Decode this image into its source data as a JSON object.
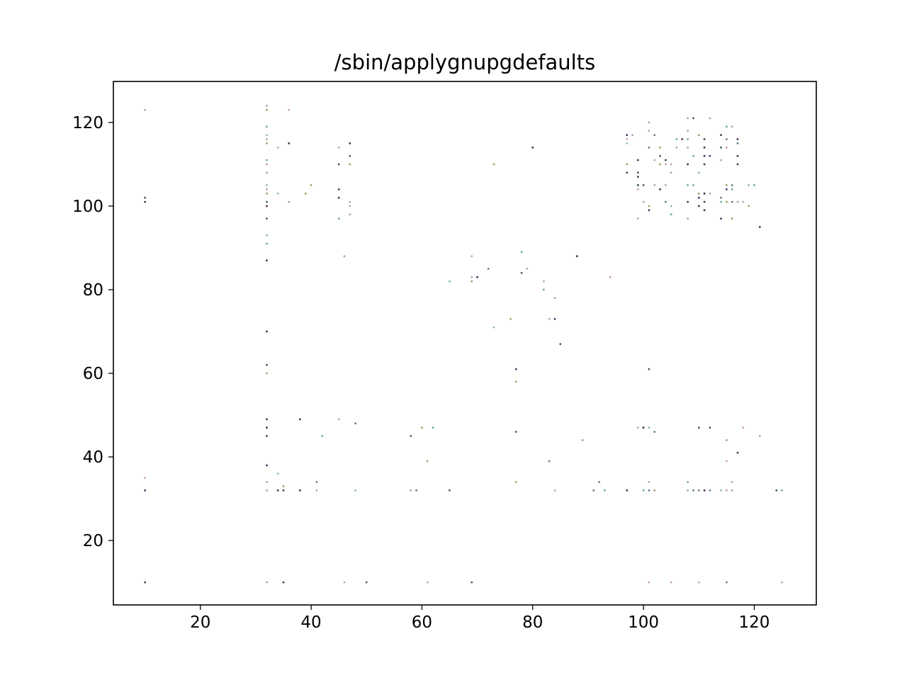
{
  "chart_data": {
    "type": "scatter",
    "title": "/sbin/applygnupgdefaults",
    "xlabel": "",
    "ylabel": "",
    "xlim": [
      4.3,
      131.2
    ],
    "ylim": [
      4.6,
      129.8
    ],
    "xticks": [
      20,
      40,
      60,
      80,
      100,
      120
    ],
    "yticks": [
      20,
      40,
      60,
      80,
      100,
      120
    ],
    "grid": false,
    "legend": "none",
    "point_colors": [
      "#2f3a5c",
      "#5e7a8a",
      "#8fb9a8",
      "#b79ab7",
      "#9e9e6e",
      "#4b2a4a",
      "#c9a0b0",
      "#6aa79a",
      "#a9a9a9",
      "#3d5f4f"
    ],
    "points": [
      [
        10,
        123
      ],
      [
        10,
        102
      ],
      [
        10,
        101
      ],
      [
        10,
        35
      ],
      [
        10,
        32
      ],
      [
        10,
        10
      ],
      [
        32,
        124
      ],
      [
        32,
        123
      ],
      [
        32,
        119
      ],
      [
        32,
        117
      ],
      [
        32,
        116
      ],
      [
        32,
        115
      ],
      [
        32,
        111
      ],
      [
        32,
        110
      ],
      [
        32,
        108
      ],
      [
        32,
        105
      ],
      [
        32,
        104
      ],
      [
        32,
        103
      ],
      [
        32,
        101
      ],
      [
        32,
        100
      ],
      [
        32,
        97
      ],
      [
        32,
        93
      ],
      [
        32,
        91
      ],
      [
        32,
        87
      ],
      [
        32,
        70
      ],
      [
        32,
        62
      ],
      [
        32,
        60
      ],
      [
        32,
        49
      ],
      [
        32,
        47
      ],
      [
        32,
        45
      ],
      [
        32,
        38
      ],
      [
        32,
        34
      ],
      [
        32,
        32
      ],
      [
        32,
        10
      ],
      [
        34,
        114
      ],
      [
        34,
        103
      ],
      [
        34,
        36
      ],
      [
        34,
        32
      ],
      [
        35,
        33
      ],
      [
        35,
        32
      ],
      [
        35,
        10
      ],
      [
        36,
        123
      ],
      [
        36,
        115
      ],
      [
        36,
        101
      ],
      [
        38,
        49
      ],
      [
        38,
        32
      ],
      [
        39,
        103
      ],
      [
        40,
        105
      ],
      [
        41,
        34
      ],
      [
        41,
        32
      ],
      [
        42,
        45
      ],
      [
        45,
        114
      ],
      [
        45,
        110
      ],
      [
        45,
        104
      ],
      [
        45,
        102
      ],
      [
        45,
        97
      ],
      [
        45,
        49
      ],
      [
        46,
        88
      ],
      [
        46,
        10
      ],
      [
        47,
        115
      ],
      [
        47,
        112
      ],
      [
        47,
        110
      ],
      [
        47,
        101
      ],
      [
        47,
        100
      ],
      [
        47,
        98
      ],
      [
        48,
        48
      ],
      [
        48,
        32
      ],
      [
        50,
        10
      ],
      [
        58,
        45
      ],
      [
        58,
        32
      ],
      [
        59,
        32
      ],
      [
        60,
        47
      ],
      [
        61,
        39
      ],
      [
        61,
        10
      ],
      [
        62,
        47
      ],
      [
        65,
        82
      ],
      [
        65,
        32
      ],
      [
        69,
        88
      ],
      [
        69,
        83
      ],
      [
        69,
        82
      ],
      [
        69,
        10
      ],
      [
        70,
        83
      ],
      [
        72,
        85
      ],
      [
        73,
        110
      ],
      [
        73,
        71
      ],
      [
        76,
        73
      ],
      [
        77,
        61
      ],
      [
        77,
        58
      ],
      [
        77,
        46
      ],
      [
        77,
        34
      ],
      [
        78,
        89
      ],
      [
        78,
        84
      ],
      [
        79,
        85
      ],
      [
        80,
        114
      ],
      [
        82,
        82
      ],
      [
        82,
        80
      ],
      [
        83,
        73
      ],
      [
        83,
        39
      ],
      [
        84,
        78
      ],
      [
        84,
        73
      ],
      [
        84,
        32
      ],
      [
        85,
        67
      ],
      [
        88,
        88
      ],
      [
        89,
        44
      ],
      [
        91,
        32
      ],
      [
        92,
        34
      ],
      [
        93,
        32
      ],
      [
        94,
        83
      ],
      [
        97,
        117
      ],
      [
        97,
        116
      ],
      [
        97,
        115
      ],
      [
        97,
        110
      ],
      [
        97,
        108
      ],
      [
        97,
        32
      ],
      [
        98,
        117
      ],
      [
        99,
        111
      ],
      [
        99,
        108
      ],
      [
        99,
        107
      ],
      [
        99,
        105
      ],
      [
        99,
        104
      ],
      [
        99,
        97
      ],
      [
        99,
        47
      ],
      [
        100,
        105
      ],
      [
        100,
        101
      ],
      [
        100,
        47
      ],
      [
        100,
        32
      ],
      [
        101,
        120
      ],
      [
        101,
        118
      ],
      [
        101,
        114
      ],
      [
        101,
        100
      ],
      [
        101,
        99
      ],
      [
        101,
        61
      ],
      [
        101,
        47
      ],
      [
        101,
        34
      ],
      [
        101,
        32
      ],
      [
        101,
        10
      ],
      [
        102,
        117
      ],
      [
        102,
        111
      ],
      [
        102,
        105
      ],
      [
        102,
        46
      ],
      [
        102,
        32
      ],
      [
        103,
        114
      ],
      [
        103,
        112
      ],
      [
        103,
        110
      ],
      [
        103,
        104
      ],
      [
        104,
        111
      ],
      [
        104,
        110
      ],
      [
        104,
        105
      ],
      [
        104,
        101
      ],
      [
        105,
        110
      ],
      [
        105,
        108
      ],
      [
        105,
        100
      ],
      [
        105,
        98
      ],
      [
        105,
        10
      ],
      [
        106,
        114
      ],
      [
        106,
        116
      ],
      [
        107,
        116
      ],
      [
        108,
        121
      ],
      [
        108,
        118
      ],
      [
        108,
        116
      ],
      [
        108,
        114
      ],
      [
        108,
        110
      ],
      [
        108,
        105
      ],
      [
        108,
        101
      ],
      [
        108,
        97
      ],
      [
        108,
        34
      ],
      [
        108,
        32
      ],
      [
        109,
        121
      ],
      [
        109,
        112
      ],
      [
        109,
        105
      ],
      [
        109,
        32
      ],
      [
        110,
        117
      ],
      [
        110,
        108
      ],
      [
        110,
        103
      ],
      [
        110,
        102
      ],
      [
        110,
        100
      ],
      [
        110,
        47
      ],
      [
        110,
        32
      ],
      [
        110,
        10
      ],
      [
        111,
        116
      ],
      [
        111,
        114
      ],
      [
        111,
        112
      ],
      [
        111,
        110
      ],
      [
        111,
        103
      ],
      [
        111,
        101
      ],
      [
        111,
        99
      ],
      [
        111,
        32
      ],
      [
        112,
        121
      ],
      [
        112,
        112
      ],
      [
        112,
        103
      ],
      [
        112,
        47
      ],
      [
        112,
        32
      ],
      [
        114,
        117
      ],
      [
        114,
        114
      ],
      [
        114,
        111
      ],
      [
        114,
        102
      ],
      [
        114,
        101
      ],
      [
        114,
        97
      ],
      [
        114,
        32
      ],
      [
        115,
        119
      ],
      [
        115,
        116
      ],
      [
        115,
        114
      ],
      [
        115,
        105
      ],
      [
        115,
        104
      ],
      [
        115,
        101
      ],
      [
        115,
        44
      ],
      [
        115,
        39
      ],
      [
        115,
        32
      ],
      [
        115,
        10
      ],
      [
        116,
        119
      ],
      [
        116,
        105
      ],
      [
        116,
        104
      ],
      [
        116,
        101
      ],
      [
        116,
        97
      ],
      [
        116,
        34
      ],
      [
        116,
        32
      ],
      [
        117,
        116
      ],
      [
        117,
        115
      ],
      [
        117,
        112
      ],
      [
        117,
        110
      ],
      [
        117,
        101
      ],
      [
        117,
        41
      ],
      [
        118,
        101
      ],
      [
        118,
        47
      ],
      [
        119,
        105
      ],
      [
        119,
        100
      ],
      [
        120,
        105
      ],
      [
        121,
        95
      ],
      [
        121,
        45
      ],
      [
        124,
        32
      ],
      [
        125,
        32
      ],
      [
        125,
        10
      ]
    ]
  }
}
